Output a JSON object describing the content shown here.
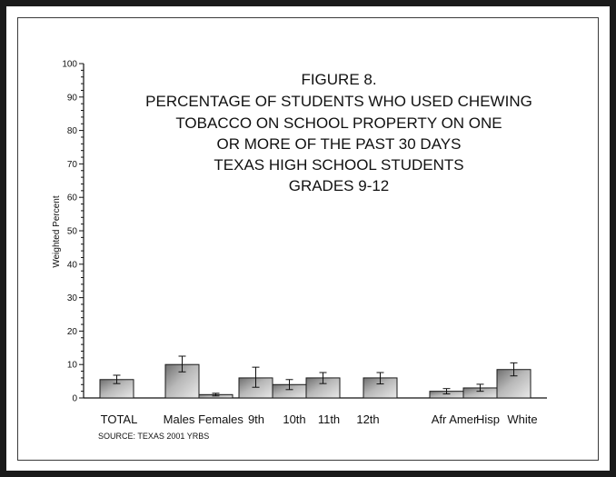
{
  "chart_data": {
    "type": "bar",
    "title_lines": [
      "FIGURE 8.",
      "PERCENTAGE OF STUDENTS WHO USED CHEWING",
      "TOBACCO ON SCHOOL PROPERTY ON ONE",
      "OR MORE OF THE PAST 30 DAYS",
      "TEXAS HIGH  SCHOOL STUDENTS",
      "GRADES 9-12"
    ],
    "ylabel": "Weighted Percent",
    "ylim": [
      0,
      100
    ],
    "yticks": [
      "0",
      "10",
      "20",
      "30",
      "40",
      "50",
      "60",
      "70",
      "80",
      "90",
      "100"
    ],
    "grid": false,
    "source": "SOURCE: TEXAS 2001 YRBS",
    "categories": [
      "TOTAL",
      "Males",
      "Females",
      "9th",
      "10th",
      "11th",
      "12th",
      "Afr Amer",
      "Hisp",
      "White"
    ],
    "values": [
      5.5,
      10,
      1,
      6,
      4,
      6,
      6,
      2,
      3,
      8.5
    ],
    "error_low": [
      4.3,
      7.8,
      0.6,
      3.2,
      2.5,
      4.3,
      4.2,
      1.2,
      2.0,
      6.6
    ],
    "error_high": [
      6.8,
      12.5,
      1.4,
      9.2,
      5.5,
      7.6,
      7.6,
      2.8,
      4.1,
      10.5
    ],
    "bar_color": "#9a9a9a"
  }
}
